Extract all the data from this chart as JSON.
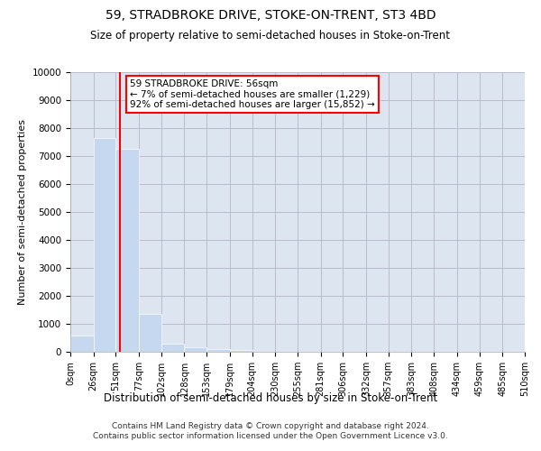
{
  "title": "59, STRADBROKE DRIVE, STOKE-ON-TRENT, ST3 4BD",
  "subtitle": "Size of property relative to semi-detached houses in Stoke-on-Trent",
  "xlabel": "Distribution of semi-detached houses by size in Stoke-on-Trent",
  "ylabel": "Number of semi-detached properties",
  "bin_labels": [
    "0sqm",
    "26sqm",
    "51sqm",
    "77sqm",
    "102sqm",
    "128sqm",
    "153sqm",
    "179sqm",
    "204sqm",
    "230sqm",
    "255sqm",
    "281sqm",
    "306sqm",
    "332sqm",
    "357sqm",
    "383sqm",
    "408sqm",
    "434sqm",
    "459sqm",
    "485sqm",
    "510sqm"
  ],
  "bin_edges": [
    0,
    26,
    51,
    77,
    102,
    128,
    153,
    179,
    204,
    230,
    255,
    281,
    306,
    332,
    357,
    383,
    408,
    434,
    459,
    485,
    510
  ],
  "bar_heights": [
    570,
    7650,
    7270,
    1370,
    300,
    160,
    110,
    80,
    0,
    0,
    0,
    0,
    0,
    0,
    0,
    0,
    0,
    0,
    0,
    0
  ],
  "bar_color": "#c5d8f0",
  "bar_edge_color": "white",
  "grid_color": "#bbbbcc",
  "background_color": "#dde6f0",
  "property_value": 56,
  "red_line_x": 56,
  "annotation_title": "59 STRADBROKE DRIVE: 56sqm",
  "annotation_line1": "← 7% of semi-detached houses are smaller (1,229)",
  "annotation_line2": "92% of semi-detached houses are larger (15,852) →",
  "ylim": [
    0,
    10000
  ],
  "yticks": [
    0,
    1000,
    2000,
    3000,
    4000,
    5000,
    6000,
    7000,
    8000,
    9000,
    10000
  ],
  "footer_line1": "Contains HM Land Registry data © Crown copyright and database right 2024.",
  "footer_line2": "Contains public sector information licensed under the Open Government Licence v3.0."
}
